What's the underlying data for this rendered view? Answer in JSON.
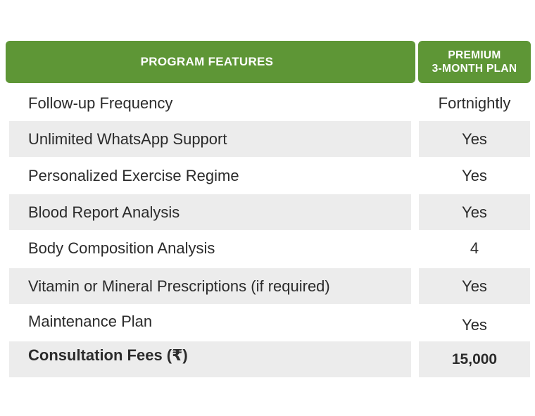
{
  "header": {
    "features_label": "PROGRAM FEATURES",
    "plan_line1": "PREMIUM",
    "plan_line2": "3-MONTH PLAN"
  },
  "rows": [
    {
      "feature": "Follow-up Frequency",
      "value": "Fortnightly"
    },
    {
      "feature": "Unlimited WhatsApp Support",
      "value": "Yes"
    },
    {
      "feature": "Personalized Exercise Regime",
      "value": "Yes"
    },
    {
      "feature": "Blood Report Analysis",
      "value": "Yes"
    },
    {
      "feature": "Body Composition Analysis",
      "value": "4"
    },
    {
      "feature": "Vitamin or Mineral Prescriptions (if required)",
      "value": "Yes"
    },
    {
      "feature": "Maintenance Plan",
      "value": "Yes"
    },
    {
      "feature": "Consultation Fees (₹)",
      "value": "15,000"
    }
  ],
  "colors": {
    "header_green": "#5e9636",
    "row_shade": "#ececec",
    "text": "#2b2b2b"
  }
}
